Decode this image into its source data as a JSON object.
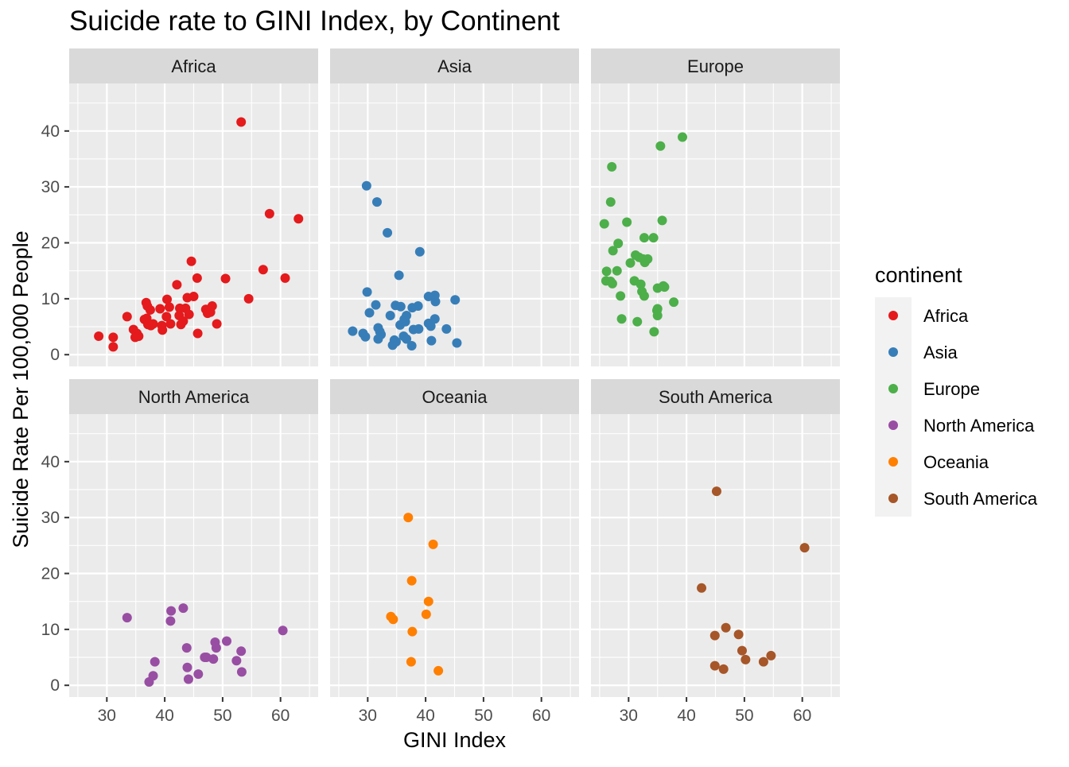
{
  "chart_data": {
    "type": "scatter",
    "title": "Suicide rate to GINI Index, by Continent",
    "xlabel": "GINI Index",
    "ylabel": "Suicide Rate Per 100,000 People",
    "xlim": [
      23.5,
      66.5
    ],
    "ylim": [
      -2.1,
      48.5
    ],
    "x_ticks": [
      30,
      40,
      50,
      60
    ],
    "y_ticks": [
      0,
      10,
      20,
      30,
      40
    ],
    "x_minor": [
      25,
      35,
      45,
      55,
      65
    ],
    "y_minor": [
      5,
      15,
      25,
      35,
      45
    ],
    "grid": true,
    "facet_layout": "2 rows x 3 columns",
    "legend": {
      "title": "continent",
      "position": "right",
      "entries": [
        "Africa",
        "Asia",
        "Europe",
        "North America",
        "Oceania",
        "South America"
      ]
    },
    "series": [
      {
        "name": "Africa",
        "color": "#E41A1C",
        "points": [
          [
            53.2,
            41.6
          ],
          [
            58.1,
            25.2
          ],
          [
            63.1,
            24.3
          ],
          [
            44.6,
            16.7
          ],
          [
            57.0,
            15.2
          ],
          [
            45.6,
            13.7
          ],
          [
            50.5,
            13.6
          ],
          [
            60.8,
            13.7
          ],
          [
            42.1,
            12.5
          ],
          [
            54.5,
            10.0
          ],
          [
            36.8,
            9.3
          ],
          [
            40.4,
            9.9
          ],
          [
            37.0,
            8.7
          ],
          [
            37.5,
            8.0
          ],
          [
            39.2,
            8.2
          ],
          [
            40.8,
            8.5
          ],
          [
            42.6,
            8.3
          ],
          [
            43.6,
            8.3
          ],
          [
            45.0,
            10.4
          ],
          [
            43.9,
            10.2
          ],
          [
            47.1,
            8.1
          ],
          [
            48.2,
            8.7
          ],
          [
            47.4,
            7.4
          ],
          [
            47.9,
            7.6
          ],
          [
            33.5,
            6.8
          ],
          [
            36.9,
            6.5
          ],
          [
            36.5,
            6.3
          ],
          [
            40.3,
            6.8
          ],
          [
            42.5,
            7.0
          ],
          [
            44.2,
            7.2
          ],
          [
            43.2,
            6.0
          ],
          [
            42.8,
            5.4
          ],
          [
            38.0,
            5.5
          ],
          [
            37.1,
            5.4
          ],
          [
            37.6,
            5.2
          ],
          [
            39.5,
            5.2
          ],
          [
            41.0,
            5.5
          ],
          [
            49.0,
            5.5
          ],
          [
            39.6,
            4.4
          ],
          [
            34.6,
            4.5
          ],
          [
            35.2,
            3.8
          ],
          [
            35.5,
            3.3
          ],
          [
            34.9,
            3.1
          ],
          [
            28.6,
            3.3
          ],
          [
            31.1,
            3.1
          ],
          [
            31.1,
            1.4
          ],
          [
            45.7,
            3.8
          ]
        ]
      },
      {
        "name": "Asia",
        "color": "#377EB8",
        "points": [
          [
            29.8,
            30.2
          ],
          [
            31.6,
            27.3
          ],
          [
            33.4,
            21.8
          ],
          [
            39.0,
            18.4
          ],
          [
            35.4,
            14.2
          ],
          [
            29.9,
            11.2
          ],
          [
            31.4,
            8.9
          ],
          [
            30.3,
            7.5
          ],
          [
            33.9,
            7.0
          ],
          [
            34.8,
            8.8
          ],
          [
            35.7,
            8.6
          ],
          [
            37.7,
            8.4
          ],
          [
            38.7,
            8.7
          ],
          [
            40.5,
            10.4
          ],
          [
            41.6,
            10.6
          ],
          [
            45.1,
            9.8
          ],
          [
            41.7,
            9.5
          ],
          [
            36.7,
            7.0
          ],
          [
            36.3,
            6.3
          ],
          [
            36.5,
            5.9
          ],
          [
            35.6,
            5.3
          ],
          [
            40.5,
            5.6
          ],
          [
            40.9,
            5.1
          ],
          [
            41.6,
            6.4
          ],
          [
            37.9,
            4.5
          ],
          [
            38.8,
            4.6
          ],
          [
            43.6,
            4.6
          ],
          [
            27.4,
            4.2
          ],
          [
            29.2,
            3.8
          ],
          [
            29.6,
            3.2
          ],
          [
            31.8,
            4.8
          ],
          [
            32.1,
            4.1
          ],
          [
            32.3,
            3.6
          ],
          [
            31.8,
            2.8
          ],
          [
            34.6,
            2.6
          ],
          [
            34.9,
            2.3
          ],
          [
            34.3,
            1.7
          ],
          [
            36.2,
            3.3
          ],
          [
            36.7,
            2.8
          ],
          [
            37.6,
            1.6
          ],
          [
            41.0,
            2.5
          ],
          [
            45.4,
            2.1
          ]
        ]
      },
      {
        "name": "Europe",
        "color": "#4DAF4A",
        "points": [
          [
            39.3,
            38.9
          ],
          [
            35.5,
            37.3
          ],
          [
            27.1,
            33.6
          ],
          [
            26.9,
            27.3
          ],
          [
            25.8,
            23.4
          ],
          [
            29.7,
            23.7
          ],
          [
            35.8,
            24.0
          ],
          [
            28.2,
            19.9
          ],
          [
            32.7,
            20.9
          ],
          [
            34.3,
            20.9
          ],
          [
            27.3,
            18.6
          ],
          [
            31.2,
            17.8
          ],
          [
            31.8,
            17.4
          ],
          [
            32.5,
            17.1
          ],
          [
            33.3,
            17.1
          ],
          [
            30.3,
            16.4
          ],
          [
            32.8,
            16.5
          ],
          [
            26.2,
            14.9
          ],
          [
            28.0,
            15.0
          ],
          [
            26.1,
            13.2
          ],
          [
            26.9,
            13.1
          ],
          [
            27.2,
            12.7
          ],
          [
            31.0,
            13.2
          ],
          [
            32.1,
            12.6
          ],
          [
            32.3,
            11.3
          ],
          [
            35.0,
            11.9
          ],
          [
            36.0,
            12.3
          ],
          [
            36.2,
            12.1
          ],
          [
            28.6,
            10.5
          ],
          [
            32.7,
            10.5
          ],
          [
            37.8,
            9.4
          ],
          [
            35.0,
            8.2
          ],
          [
            34.9,
            7.9
          ],
          [
            35.0,
            7.0
          ],
          [
            28.8,
            6.4
          ],
          [
            31.5,
            5.9
          ],
          [
            34.4,
            4.1
          ]
        ]
      },
      {
        "name": "North America",
        "color": "#984EA3",
        "points": [
          [
            33.5,
            12.1
          ],
          [
            41.1,
            13.3
          ],
          [
            43.2,
            13.8
          ],
          [
            41.0,
            11.5
          ],
          [
            60.4,
            9.8
          ],
          [
            48.7,
            7.7
          ],
          [
            50.7,
            7.9
          ],
          [
            43.8,
            6.7
          ],
          [
            48.9,
            6.7
          ],
          [
            53.2,
            6.1
          ],
          [
            46.9,
            5.0
          ],
          [
            47.2,
            5.0
          ],
          [
            48.4,
            4.7
          ],
          [
            52.4,
            4.4
          ],
          [
            38.3,
            4.2
          ],
          [
            43.9,
            3.2
          ],
          [
            53.3,
            2.4
          ],
          [
            38.0,
            1.7
          ],
          [
            45.8,
            2.0
          ],
          [
            44.1,
            1.1
          ],
          [
            37.3,
            0.6
          ]
        ]
      },
      {
        "name": "Oceania",
        "color": "#FF7F00",
        "points": [
          [
            37.0,
            30.0
          ],
          [
            41.3,
            25.2
          ],
          [
            37.6,
            18.7
          ],
          [
            40.5,
            15.0
          ],
          [
            34.0,
            12.3
          ],
          [
            34.4,
            11.8
          ],
          [
            40.1,
            12.7
          ],
          [
            37.7,
            9.6
          ],
          [
            37.5,
            4.2
          ],
          [
            42.2,
            2.6
          ]
        ]
      },
      {
        "name": "South America",
        "color": "#A65628",
        "points": [
          [
            45.2,
            34.7
          ],
          [
            60.4,
            24.6
          ],
          [
            42.6,
            17.4
          ],
          [
            46.8,
            10.3
          ],
          [
            49.0,
            9.1
          ],
          [
            44.9,
            8.9
          ],
          [
            49.6,
            6.2
          ],
          [
            54.6,
            5.3
          ],
          [
            50.2,
            4.6
          ],
          [
            53.3,
            4.2
          ],
          [
            44.9,
            3.5
          ],
          [
            46.4,
            2.9
          ]
        ]
      }
    ]
  }
}
